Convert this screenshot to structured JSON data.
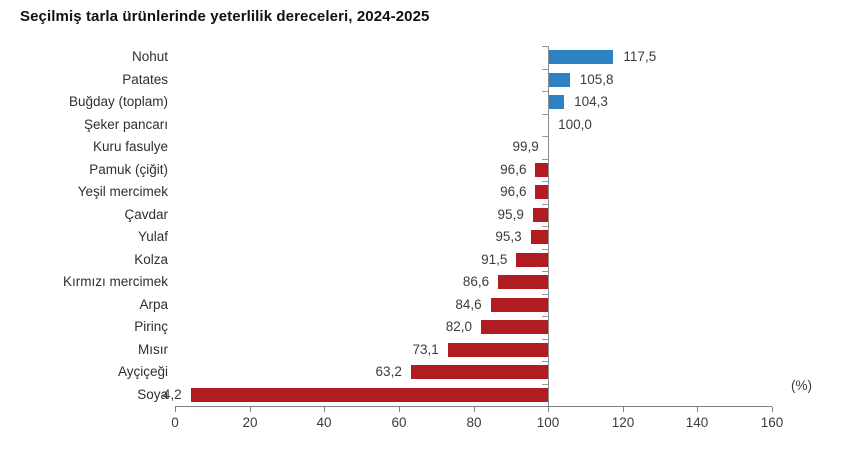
{
  "title": "Seçilmiş tarla ürünlerinde yeterlilik dereceleri, 2024-2025",
  "chart_data": {
    "type": "bar",
    "orientation": "horizontal",
    "baseline": 100,
    "categories": [
      "Nohut",
      "Patates",
      "Buğday (toplam)",
      "Şeker pancarı",
      "Kuru fasulye",
      "Pamuk (çiğit)",
      "Yeşil mercimek",
      "Çavdar",
      "Yulaf",
      "Kolza",
      "Kırmızı mercimek",
      "Arpa",
      "Pirinç",
      "Mısır",
      "Ayçiçeği",
      "Soya"
    ],
    "values": [
      117.5,
      105.8,
      104.3,
      100.0,
      99.9,
      96.6,
      96.6,
      95.9,
      95.3,
      91.5,
      86.6,
      84.6,
      82.0,
      73.1,
      63.2,
      4.2
    ],
    "value_labels": [
      "117,5",
      "105,8",
      "104,3",
      "100,0",
      "99,9",
      "96,6",
      "96,6",
      "95,9",
      "95,3",
      "91,5",
      "86,6",
      "84,6",
      "82,0",
      "73,1",
      "63,2",
      "4,2"
    ],
    "colors": {
      "above_baseline": "#2d82c3",
      "below_baseline": "#b01c20"
    },
    "xlabel": "(%)",
    "xlim": [
      0,
      160
    ],
    "xticks": [
      0,
      20,
      40,
      60,
      80,
      100,
      120,
      140,
      160
    ],
    "grid": "off",
    "legend": "none"
  }
}
